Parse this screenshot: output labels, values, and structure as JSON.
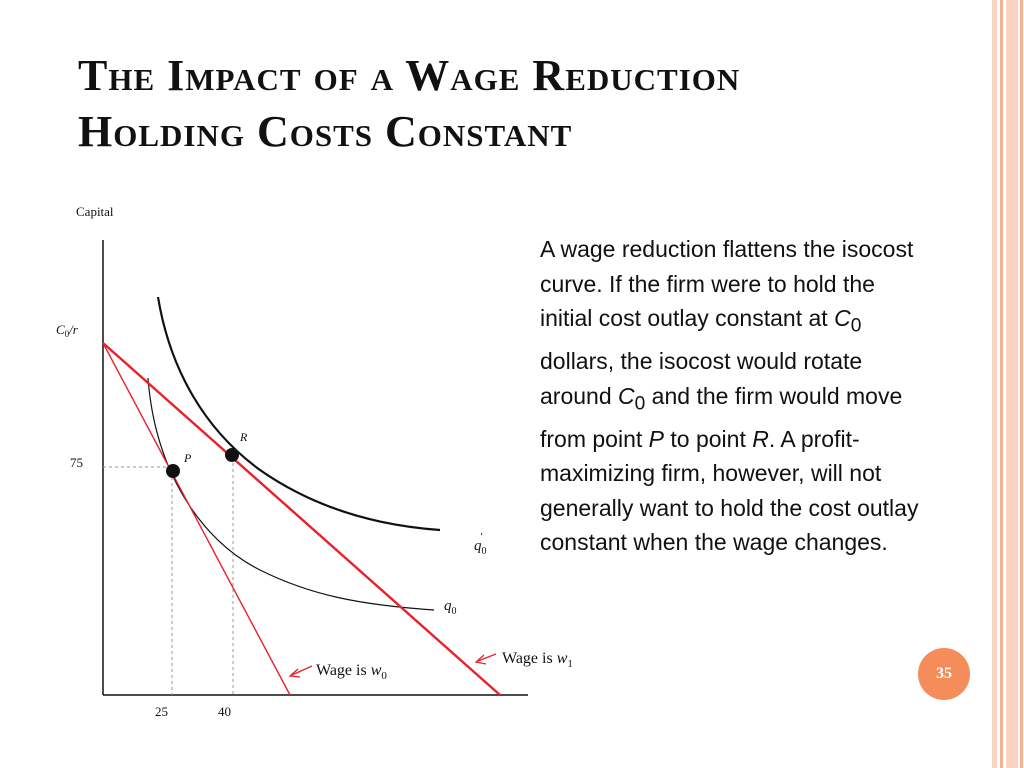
{
  "slide": {
    "title_line1": "The Impact of a Wage Reduction",
    "title_line2": "Holding Costs Constant",
    "page_number": "35"
  },
  "description": {
    "p1": "A wage reduction flattens the isocost curve. If the firm were to hold the initial cost outlay constant at ",
    "c0a": "C",
    "c0a_sub": "0",
    "p2": " dollars, the isocost would rotate around ",
    "c0b": "C",
    "c0b_sub": "0",
    "p3": " and the firm would move from point ",
    "pt_p": "P",
    "p4": " to point ",
    "pt_r": "R",
    "p5": ". A profit-maximizing firm, however, will not generally want to hold the cost outlay constant when the wage changes."
  },
  "diagram": {
    "y_axis_label": "Capital",
    "y_intercept_label": {
      "c": "C",
      "sub": "0",
      "rest": "/r"
    },
    "tick_y_75": "75",
    "tick_x_25": "25",
    "tick_x_40": "40",
    "point_p": "P",
    "point_r": "R",
    "isoquant_q0": {
      "q": "q",
      "sub": "0"
    },
    "isoquant_q0_prime": {
      "q": "q",
      "sub": "0",
      "sup": "′"
    },
    "wage_w0": {
      "text": "Wage is ",
      "w": "w",
      "sub": "0"
    },
    "wage_w1": {
      "text": "Wage is ",
      "w": "w",
      "sub": "1"
    }
  },
  "colors": {
    "isocost": "#e8212b",
    "curve": "#111111",
    "badge": "#f58d5a",
    "border_light": "#fbd3c2",
    "border_mid": "#f6b194"
  }
}
